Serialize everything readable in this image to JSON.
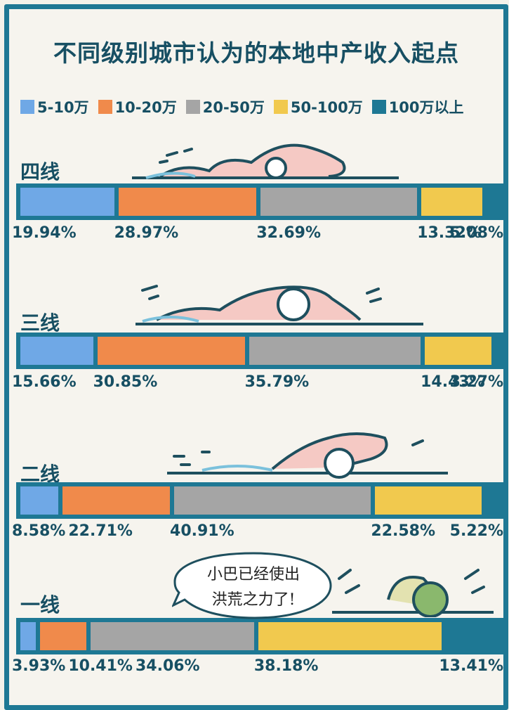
{
  "title": "不同级别城市认为的本地中产收入起点",
  "legend": [
    {
      "label": "5-10万",
      "color": "#6fa8e6"
    },
    {
      "label": "10-20万",
      "color": "#f08a4b"
    },
    {
      "label": "20-50万",
      "color": "#a5a5a5"
    },
    {
      "label": "50-100万",
      "color": "#f1c94e"
    },
    {
      "label": "100万以上",
      "color": "#1e7894"
    }
  ],
  "bubble": {
    "line1": "小巴已经使出",
    "line2": "洪荒之力了!"
  },
  "chart_data": {
    "type": "bar",
    "stacked": true,
    "orientation": "horizontal",
    "title": "不同级别城市认为的本地中产收入起点",
    "categories": [
      "四线",
      "三线",
      "二线",
      "一线"
    ],
    "series": [
      {
        "name": "5-10万",
        "values": [
          19.94,
          15.66,
          8.58,
          3.93
        ],
        "labels": [
          "19.94%",
          "15.66%",
          "8.58%",
          "3.93%"
        ]
      },
      {
        "name": "10-20万",
        "values": [
          28.97,
          30.85,
          22.71,
          10.41
        ],
        "labels": [
          "28.97%",
          "30.85%",
          "22.71%",
          "10.41%"
        ]
      },
      {
        "name": "20-50万",
        "values": [
          32.69,
          35.79,
          40.91,
          34.06
        ],
        "labels": [
          "32.69%",
          "35.79%",
          "40.91%",
          "34.06%"
        ]
      },
      {
        "name": "50-100万",
        "values": [
          13.32,
          14.43,
          22.58,
          38.18
        ],
        "labels": [
          "13.32%",
          "14.43%",
          "22.58%",
          "38.18%"
        ]
      },
      {
        "name": "100万以上",
        "values": [
          5.08,
          3.27,
          5.22,
          13.41
        ],
        "labels": [
          "5.08%",
          "3.27%",
          "5.22%",
          "13.41%"
        ]
      }
    ],
    "legend_position": "top"
  }
}
